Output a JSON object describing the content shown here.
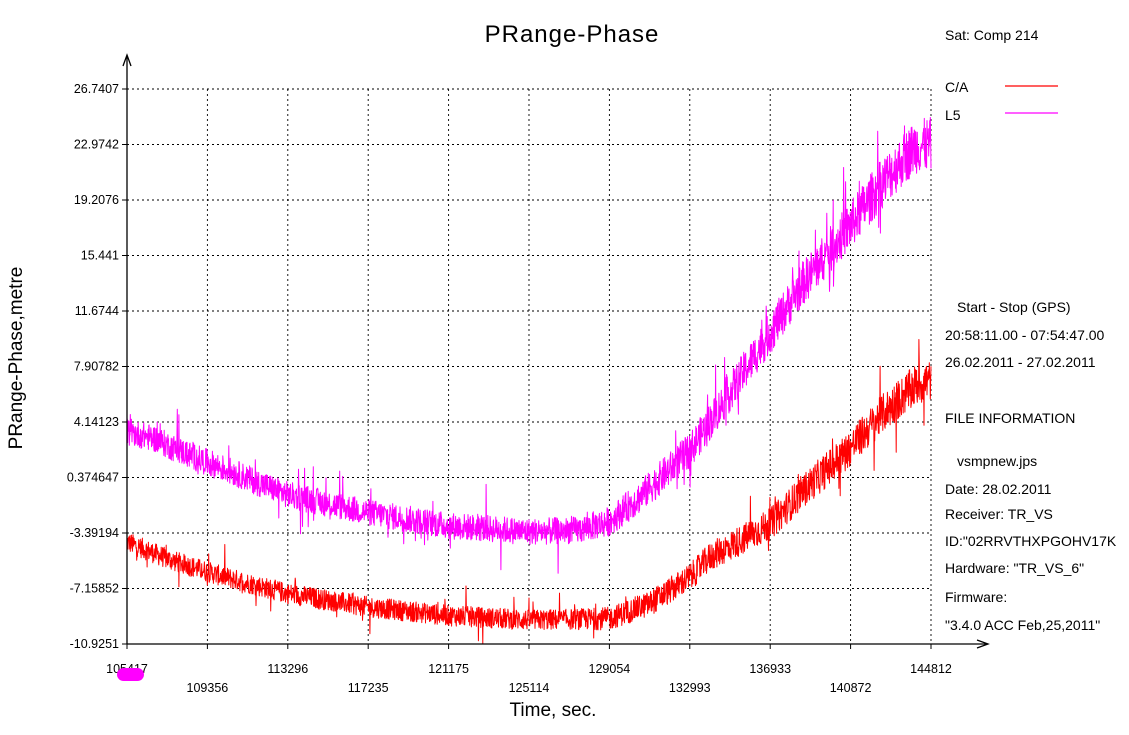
{
  "chart_data": {
    "type": "line",
    "title": "PRange-Phase",
    "xlabel": "Time, sec.",
    "ylabel": "PRange-Phase,metre",
    "xlim": [
      105417,
      144812
    ],
    "ylim": [
      -10.9251,
      26.7407
    ],
    "x_ticks_top_row": [
      "105417",
      "113296",
      "121175",
      "129054",
      "136933",
      "144812"
    ],
    "x_ticks_bottom_row": [
      "109356",
      "117235",
      "125114",
      "132993",
      "140872"
    ],
    "y_ticks": [
      "26.7407",
      "22.9742",
      "19.2076",
      "15.441",
      "11.6744",
      "7.90782",
      "4.14123",
      "0.374647",
      "-3.39194",
      "-7.15852",
      "-10.9251"
    ],
    "grid": true,
    "legend_position": "top-right",
    "legend_title": "Sat: Comp  214",
    "series": [
      {
        "name": "C/A",
        "color": "#ff0000",
        "noise": 1.0,
        "x": [
          105417,
          107500,
          110000,
          113296,
          117235,
          121175,
          125114,
          129054,
          131000,
          132993,
          134000,
          136933,
          138500,
          140872,
          142500,
          144000,
          144812
        ],
        "y": [
          -4.0,
          -5.2,
          -6.3,
          -7.5,
          -8.4,
          -9.0,
          -9.3,
          -9.2,
          -8.2,
          -6.4,
          -5.0,
          -2.8,
          -0.6,
          2.4,
          4.8,
          6.6,
          7.0
        ]
      },
      {
        "name": "L5",
        "color": "#ff00ff",
        "noise": 1.3,
        "x": [
          105417,
          106800,
          107500,
          109000,
          110500,
          113296,
          117235,
          121175,
          125114,
          127500,
          129054,
          130500,
          132993,
          134500,
          136933,
          138500,
          140872,
          142500,
          144000,
          144812
        ],
        "y": [
          3.5,
          3.0,
          2.5,
          1.6,
          0.8,
          -0.8,
          -2.0,
          -2.9,
          -3.3,
          -3.2,
          -2.6,
          -1.0,
          2.2,
          5.2,
          10.2,
          13.5,
          17.5,
          20.5,
          22.8,
          23.0
        ]
      }
    ]
  },
  "info": {
    "period_title": "Start  -  Stop  (GPS)",
    "time_range": "20:58:11.00 - 07:54:47.00",
    "date_range": "26.02.2011 - 27.02.2011",
    "file_info_title": "FILE INFORMATION",
    "file_name": "vsmpnew.jps",
    "date": "Date: 28.02.2011",
    "receiver": "Receiver: TR_VS",
    "id": "ID:\"02RRVTHXPGOHV17K",
    "hardware": "Hardware: \"TR_VS_6\"",
    "firmware_label": "Firmware:",
    "firmware_value": "\"3.4.0 ACC Feb,25,2011\""
  }
}
